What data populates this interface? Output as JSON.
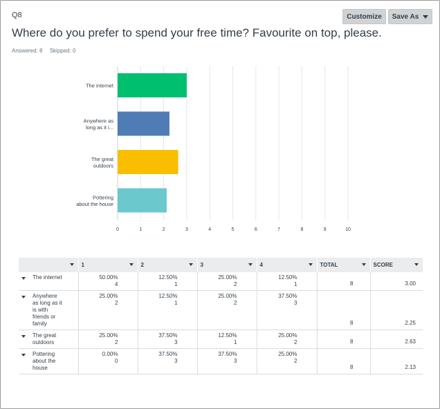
{
  "header": {
    "question_number": "Q8",
    "customize_label": "Customize",
    "save_as_label": "Save As",
    "title": "Where do you prefer to spend your free time? Favourite on top, please.",
    "answered": "Answered: 8",
    "skipped": "Skipped: 0"
  },
  "chart_data": {
    "type": "bar",
    "orientation": "horizontal",
    "categories": [
      "The internet",
      "Anywhere as long as it i...",
      "The great outdoors",
      "Pottering about the house"
    ],
    "category_lines": [
      [
        "The internet"
      ],
      [
        "Anywhere as",
        "long as it i..."
      ],
      [
        "The great",
        "outdoors"
      ],
      [
        "Pottering",
        "about the house"
      ]
    ],
    "values": [
      3.0,
      2.25,
      2.63,
      2.13
    ],
    "colors": [
      "#00bf6f",
      "#507cb6",
      "#f9be00",
      "#6bc8cd"
    ],
    "xlim": [
      0,
      10
    ],
    "xticks": [
      0,
      1,
      2,
      3,
      4,
      5,
      6,
      7,
      8,
      9,
      10
    ],
    "grid": true
  },
  "table": {
    "headers": [
      "",
      "1",
      "2",
      "3",
      "4",
      "TOTAL",
      "SCORE"
    ],
    "rows": [
      {
        "label": "The internet",
        "cells": [
          {
            "pct": "50.00%",
            "n": "4"
          },
          {
            "pct": "12.50%",
            "n": "1"
          },
          {
            "pct": "25.00%",
            "n": "2"
          },
          {
            "pct": "12.50%",
            "n": "1"
          }
        ],
        "total": "8",
        "score": "3.00"
      },
      {
        "label": "Anywhere as long as it is with friends or family",
        "cells": [
          {
            "pct": "25.00%",
            "n": "2"
          },
          {
            "pct": "12.50%",
            "n": "1"
          },
          {
            "pct": "25.00%",
            "n": "2"
          },
          {
            "pct": "37.50%",
            "n": "3"
          }
        ],
        "total": "8",
        "score": "2.25"
      },
      {
        "label": "The great outdoors",
        "cells": [
          {
            "pct": "25.00%",
            "n": "2"
          },
          {
            "pct": "37.50%",
            "n": "3"
          },
          {
            "pct": "12.50%",
            "n": "1"
          },
          {
            "pct": "25.00%",
            "n": "2"
          }
        ],
        "total": "8",
        "score": "2.63"
      },
      {
        "label": "Pottering about the house",
        "cells": [
          {
            "pct": "0.00%",
            "n": "0"
          },
          {
            "pct": "37.50%",
            "n": "3"
          },
          {
            "pct": "37.50%",
            "n": "3"
          },
          {
            "pct": "25.00%",
            "n": "2"
          }
        ],
        "total": "8",
        "score": "2.13"
      }
    ]
  }
}
